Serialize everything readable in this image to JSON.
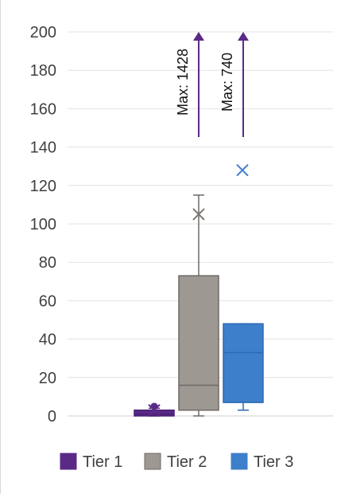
{
  "chart_data": {
    "type": "box",
    "title": "",
    "xlabel": "",
    "ylabel": "",
    "ylim": [
      0,
      200
    ],
    "yticks": [
      0,
      20,
      40,
      60,
      80,
      100,
      120,
      140,
      160,
      180,
      200
    ],
    "ytick_labels": [
      "0",
      "20",
      "40",
      "60",
      "80",
      "100",
      "120",
      "140",
      "160",
      "180",
      "200"
    ],
    "grid": true,
    "legend_position": "bottom",
    "series": [
      {
        "name": "Tier 1",
        "color": "#5b2a86",
        "min": 0,
        "q1": 0,
        "median": 1,
        "q3": 3,
        "max": 4,
        "mean": 3,
        "outliers": [
          5
        ]
      },
      {
        "name": "Tier 2",
        "color": "#9d9892",
        "min": 0,
        "q1": 3,
        "median": 16,
        "q3": 73,
        "max": 115,
        "mean": 105,
        "outliers": [],
        "annotation": "Max: 1428"
      },
      {
        "name": "Tier 3",
        "color": "#3d7fca",
        "min": 3,
        "q1": 7,
        "median": 33,
        "q3": 48,
        "max": 48,
        "mean": 128,
        "outliers": [],
        "annotation": "Max: 740"
      }
    ]
  }
}
